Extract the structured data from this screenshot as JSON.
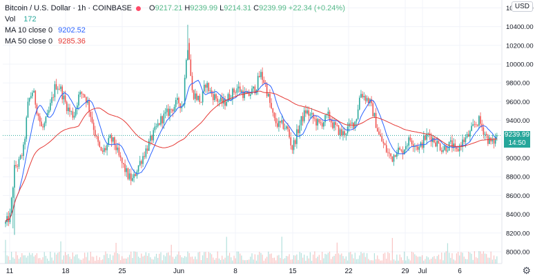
{
  "legend": {
    "title": "Bitcoin / U.S. Dollar · 1h · COINBASE",
    "ohlc_o_label": "O",
    "ohlc_o": "9217.21",
    "ohlc_h_label": "H",
    "ohlc_h": "9239.99",
    "ohlc_l_label": "L",
    "ohlc_l": "9214.31",
    "ohlc_c_label": "C",
    "ohlc_c": "9239.99",
    "change": "+22.34 (+0.24%)",
    "vol_label": "Vol",
    "vol_value": "172",
    "ma10_label": "MA 10 close 0",
    "ma10_value": "9202.52",
    "ma50_label": "MA 50 close 0",
    "ma50_value": "9285.36"
  },
  "currency_button": "USD",
  "current_price": "9239.99",
  "countdown": "14:50",
  "colors": {
    "up": "#26a69a",
    "down": "#ef5350",
    "ma10": "#2962ff",
    "ma50": "#e53935",
    "last": "#26a69a"
  },
  "chart_data": {
    "type": "candlestick",
    "y_ticks": [
      "10600.00",
      "10400.00",
      "10200.00",
      "10000.00",
      "9800.00",
      "9600.00",
      "9400.00",
      "9200.00",
      "9000.00",
      "8800.00",
      "8600.00",
      "8400.00",
      "8200.00",
      "8000.00"
    ],
    "ylim": [
      7830,
      10700
    ],
    "x_ticks": [
      "11",
      "18",
      "25",
      "Jun",
      "8",
      "15",
      "22",
      "29",
      "Jul",
      "6"
    ],
    "close_series": [
      8300,
      8380,
      8900,
      8950,
      9100,
      9600,
      9720,
      9500,
      9300,
      9400,
      9580,
      9780,
      9750,
      9600,
      9500,
      9450,
      9650,
      9700,
      9600,
      9400,
      9200,
      9050,
      9100,
      9200,
      9150,
      9000,
      8900,
      8800,
      8760,
      8900,
      9000,
      9100,
      9200,
      9300,
      9400,
      9450,
      9500,
      9550,
      9600,
      9550,
      10300,
      9700,
      9650,
      9600,
      9800,
      9700,
      9650,
      9600,
      9580,
      9650,
      9700,
      9750,
      9700,
      9650,
      9700,
      9750,
      9900,
      9800,
      9600,
      9400,
      9350,
      9350,
      9300,
      9100,
      9250,
      9400,
      9500,
      9450,
      9400,
      9350,
      9400,
      9450,
      9350,
      9300,
      9250,
      9300,
      9350,
      9400,
      9700,
      9650,
      9600,
      9450,
      9250,
      9150,
      9050,
      9000,
      9100,
      9050,
      9150,
      9200,
      9150,
      9100,
      9200,
      9250,
      9200,
      9150,
      9100,
      9120,
      9150,
      9050,
      9150,
      9200,
      9250,
      9350,
      9400,
      9300,
      9200,
      9150,
      9240
    ],
    "ma10_value": 9202.52,
    "ma50_value": 9285.36,
    "current": 9239.99
  }
}
